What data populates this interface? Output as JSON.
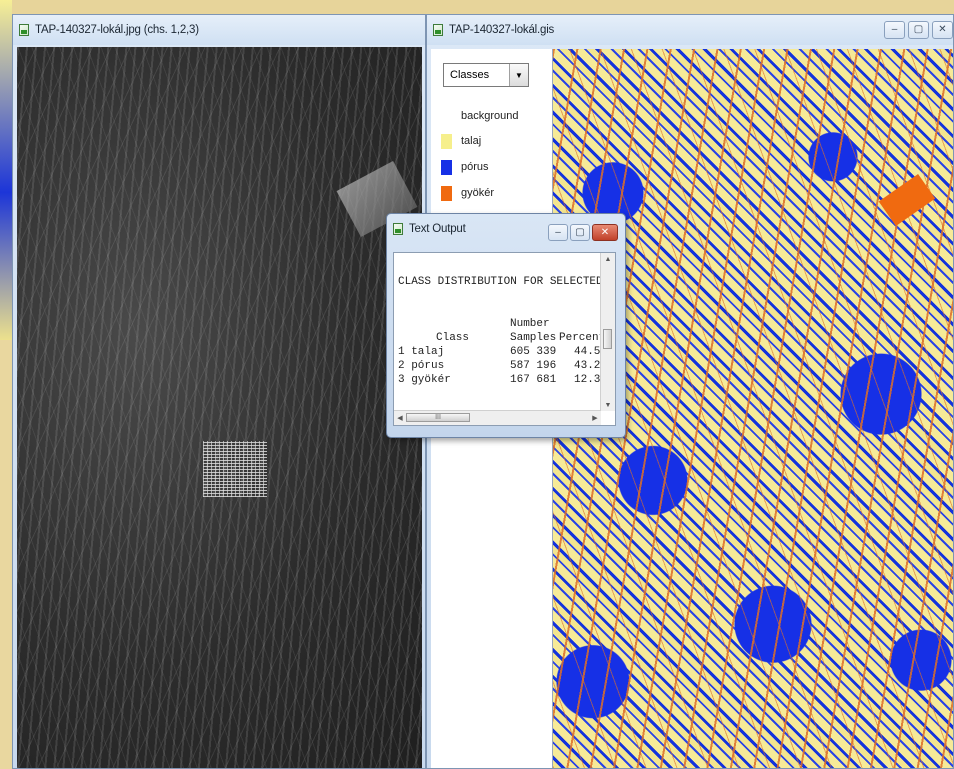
{
  "raster_window": {
    "title": "TAP-140327-lokál.jpg (chs. 1,2,3)"
  },
  "gis_window": {
    "title": "TAP-140327-lokál.gis",
    "buttons": {
      "minimize": "–",
      "maximize": "▢",
      "close": "✕"
    },
    "legend": {
      "selector_value": "Classes",
      "items": [
        {
          "label": "background",
          "color": "#ffffff"
        },
        {
          "label": "talaj",
          "color": "#f6ef8c"
        },
        {
          "label": "pórus",
          "color": "#1630e6"
        },
        {
          "label": "gyökér",
          "color": "#f06a10"
        }
      ]
    }
  },
  "text_output": {
    "title": "Text Output",
    "heading": "CLASS DISTRIBUTION FOR SELECTED AREA",
    "col_header_top": "Number",
    "col_class": "Class",
    "col_samples": "Samples",
    "col_percent": "Percent",
    "rows": [
      {
        "class": "1 talaj",
        "samples": "605 339",
        "percent": "44.5"
      },
      {
        "class": "2 pórus",
        "samples": "587 196",
        "percent": "43.2"
      },
      {
        "class": "3 gyökér",
        "samples": "167 681",
        "percent": "12.3"
      }
    ],
    "scroll_thumb": "III"
  }
}
